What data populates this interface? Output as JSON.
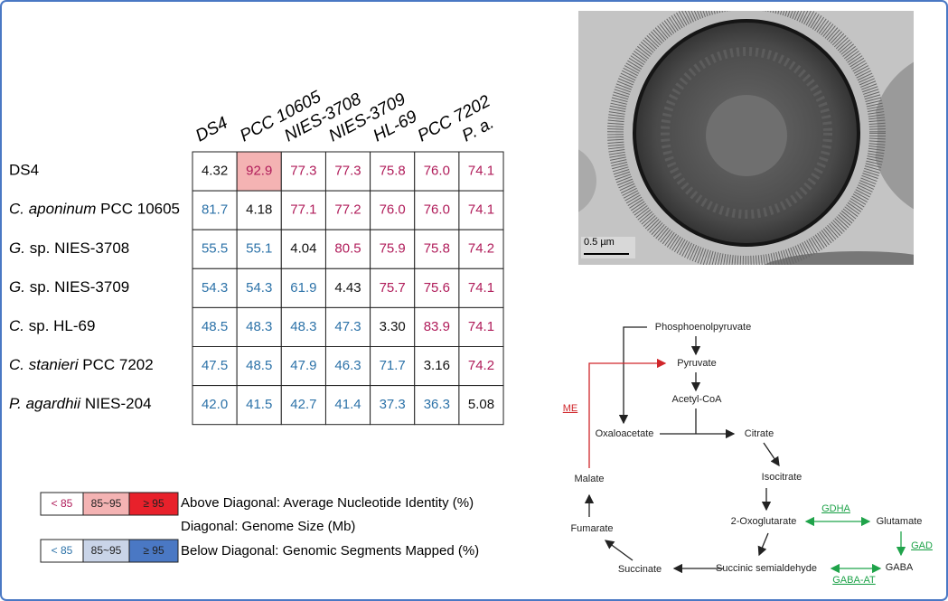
{
  "table": {
    "columns": [
      "DS4",
      "PCC 10605",
      "NIES-3708",
      "NIES-3709",
      "HL-69",
      "PCC 7202",
      "P. a."
    ],
    "rows": [
      {
        "label": {
          "text": "DS4"
        },
        "values": [
          "4.32",
          "92.9",
          "77.3",
          "77.3",
          "75.8",
          "76.0",
          "74.1"
        ]
      },
      {
        "label": {
          "italic": "C. aponinum",
          "text": "PCC 10605"
        },
        "values": [
          "81.7",
          "4.18",
          "77.1",
          "77.2",
          "76.0",
          "76.0",
          "74.1"
        ]
      },
      {
        "label": {
          "italic": "G.",
          "text": "sp. NIES-3708"
        },
        "values": [
          "55.5",
          "55.1",
          "4.04",
          "80.5",
          "75.9",
          "75.8",
          "74.2"
        ]
      },
      {
        "label": {
          "italic": "G.",
          "text": "sp. NIES-3709"
        },
        "values": [
          "54.3",
          "54.3",
          "61.9",
          "4.43",
          "75.7",
          "75.6",
          "74.1"
        ]
      },
      {
        "label": {
          "italic": "C.",
          "text": "sp. HL-69"
        },
        "values": [
          "48.5",
          "48.3",
          "48.3",
          "47.3",
          "3.30",
          "83.9",
          "74.1"
        ]
      },
      {
        "label": {
          "italic": "C. stanieri",
          "text": "PCC 7202"
        },
        "values": [
          "47.5",
          "48.5",
          "47.9",
          "46.3",
          "71.7",
          "3.16",
          "74.2"
        ]
      },
      {
        "label": {
          "italic": "P. agardhii",
          "text": "NIES-204"
        },
        "values": [
          "42.0",
          "41.5",
          "42.7",
          "41.4",
          "37.3",
          "36.3",
          "5.08"
        ]
      }
    ],
    "above_text_color": "#b01c5a",
    "below_text_color": "#2c72a8"
  },
  "legend": {
    "above": {
      "labels": [
        "< 85",
        "85~95",
        "≥ 95"
      ],
      "colors": [
        "#ffffff",
        "#f4b3b3",
        "#e8212b"
      ],
      "text": "Above Diagonal: Average Nucleotide Identity (%)"
    },
    "diagonal": {
      "text": "Diagonal: Genome Size (Mb)"
    },
    "below": {
      "labels": [
        "< 85",
        "85~95",
        "≥ 95"
      ],
      "colors": [
        "#ffffff",
        "#c9d4e8",
        "#4a78c4"
      ],
      "text": "Below Diagonal: Genomic Segments Mapped (%)"
    }
  },
  "image": {
    "scale_bar": "0.5 µm"
  },
  "pathway": {
    "nodes": [
      "Phosphoenolpyruvate",
      "Pyruvate",
      "Acetyl-CoA",
      "Oxaloacetate",
      "Citrate",
      "Isocitrate",
      "2-Oxoglutarate",
      "Glutamate",
      "GABA",
      "Succinic semialdehyde",
      "Succinate",
      "Fumarate",
      "Malate"
    ],
    "enzymes": [
      "ME",
      "GDHA",
      "GAD",
      "GABA-AT"
    ]
  }
}
